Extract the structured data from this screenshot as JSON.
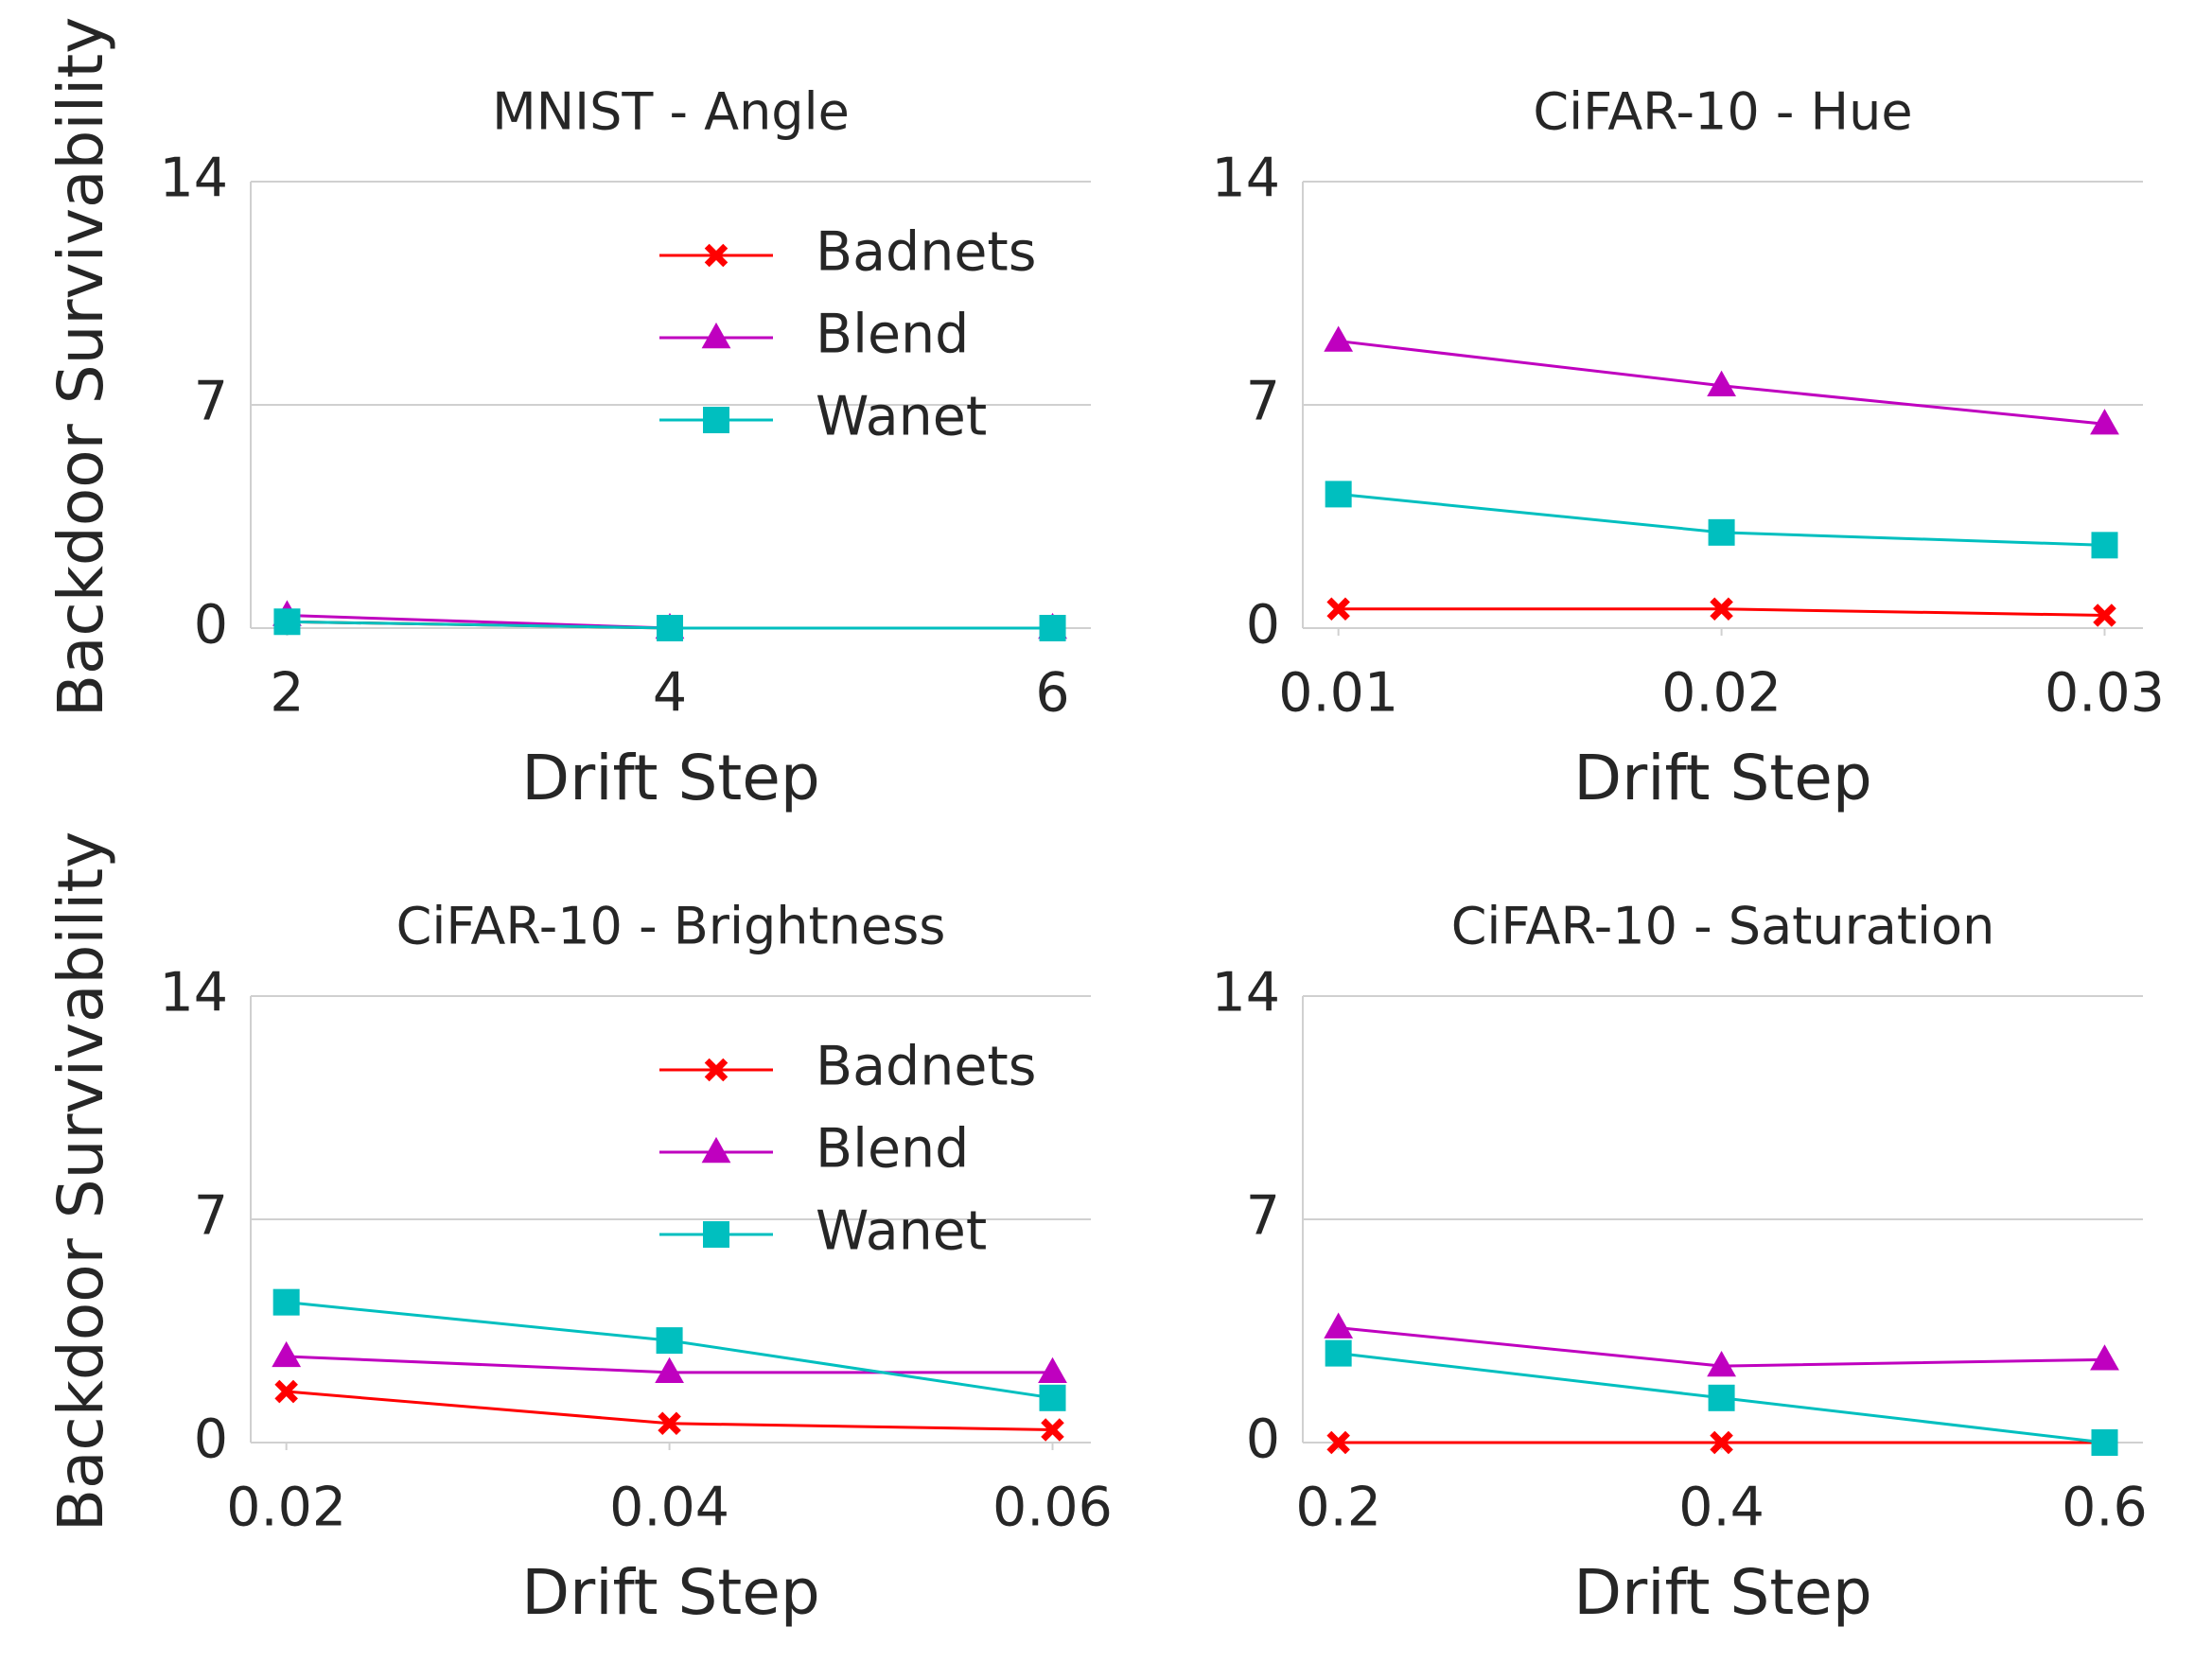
{
  "chart_data": [
    {
      "type": "line",
      "title": "MNIST - Angle",
      "xlabel": "Drift Step",
      "ylabel": "Backdoor Survivability",
      "x": [
        2,
        4,
        6
      ],
      "xlim": [
        1.81,
        6.2
      ],
      "xticks": [
        2,
        4,
        6
      ],
      "ylim": [
        0,
        14
      ],
      "yticks": [
        0,
        7,
        14
      ],
      "grid": true,
      "legend": "upper right",
      "series": [
        {
          "name": "Badnets",
          "color": "#ff0000",
          "marker": "x",
          "values": [
            0.2,
            0,
            0
          ]
        },
        {
          "name": "Blend",
          "color": "#bf00bf",
          "marker": "triangle",
          "values": [
            0.4,
            0,
            0
          ]
        },
        {
          "name": "Wanet",
          "color": "#00bfbf",
          "marker": "square",
          "values": [
            0.2,
            0,
            0
          ]
        }
      ]
    },
    {
      "type": "line",
      "title": "CiFAR-10 - Hue",
      "xlabel": "Drift Step",
      "x": [
        0.01,
        0.02,
        0.03
      ],
      "xlim": [
        0.00907,
        0.031
      ],
      "xticks": [
        0.01,
        0.02,
        0.03
      ],
      "ylim": [
        0,
        14
      ],
      "yticks": [
        0,
        7,
        14
      ],
      "grid": true,
      "series": [
        {
          "name": "Badnets",
          "color": "#ff0000",
          "marker": "x",
          "values": [
            0.6,
            0.6,
            0.4
          ]
        },
        {
          "name": "Blend",
          "color": "#bf00bf",
          "marker": "triangle",
          "values": [
            9.0,
            7.6,
            6.4
          ]
        },
        {
          "name": "Wanet",
          "color": "#00bfbf",
          "marker": "square",
          "values": [
            4.2,
            3.0,
            2.6
          ]
        }
      ]
    },
    {
      "type": "line",
      "title": "CiFAR-10 - Brightness",
      "xlabel": "Drift Step",
      "ylabel": "Backdoor Survivability",
      "x": [
        0.02,
        0.04,
        0.06
      ],
      "xlim": [
        0.01814,
        0.062
      ],
      "xticks": [
        0.02,
        0.04,
        0.06
      ],
      "ylim": [
        0,
        14
      ],
      "yticks": [
        0,
        7,
        14
      ],
      "grid": true,
      "legend": "upper right",
      "series": [
        {
          "name": "Badnets",
          "color": "#ff0000",
          "marker": "x",
          "values": [
            1.6,
            0.6,
            0.4
          ]
        },
        {
          "name": "Blend",
          "color": "#bf00bf",
          "marker": "triangle",
          "values": [
            2.7,
            2.2,
            2.2
          ]
        },
        {
          "name": "Wanet",
          "color": "#00bfbf",
          "marker": "square",
          "values": [
            4.4,
            3.2,
            1.4
          ]
        }
      ]
    },
    {
      "type": "line",
      "title": "CiFAR-10 - Saturation",
      "xlabel": "Drift Step",
      "x": [
        0.2,
        0.4,
        0.6
      ],
      "xlim": [
        0.1814,
        0.62
      ],
      "xticks": [
        0.2,
        0.4,
        0.6
      ],
      "ylim": [
        0,
        14
      ],
      "yticks": [
        0,
        7,
        14
      ],
      "grid": true,
      "series": [
        {
          "name": "Badnets",
          "color": "#ff0000",
          "marker": "x",
          "values": [
            0,
            0,
            0
          ]
        },
        {
          "name": "Blend",
          "color": "#bf00bf",
          "marker": "triangle",
          "values": [
            3.6,
            2.4,
            2.6
          ]
        },
        {
          "name": "Wanet",
          "color": "#00bfbf",
          "marker": "square",
          "values": [
            2.8,
            1.4,
            0
          ]
        }
      ]
    }
  ]
}
